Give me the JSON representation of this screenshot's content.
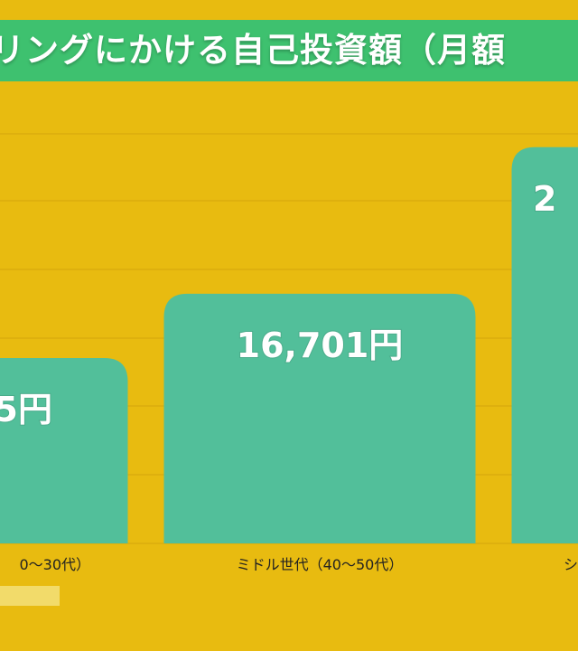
{
  "colors": {
    "background": "#E8BB10",
    "title_band": "#3EC16F",
    "bar": "#52BF9A",
    "gridline": "#D3A50C",
    "legend_swatch": "#F2DB6A"
  },
  "chart_data": {
    "type": "bar",
    "title": "リングにかける自己投資額（月額",
    "categories": [
      "0〜30代）",
      "ミドル世代（40〜50代）",
      "シ"
    ],
    "values": [
      12400,
      16701,
      26500
    ],
    "data_labels": [
      "5円",
      "16,701円",
      "2"
    ],
    "ylim": [
      0,
      28000
    ],
    "grid": true,
    "legend": "bottom-left",
    "xlabel": "",
    "ylabel": ""
  }
}
